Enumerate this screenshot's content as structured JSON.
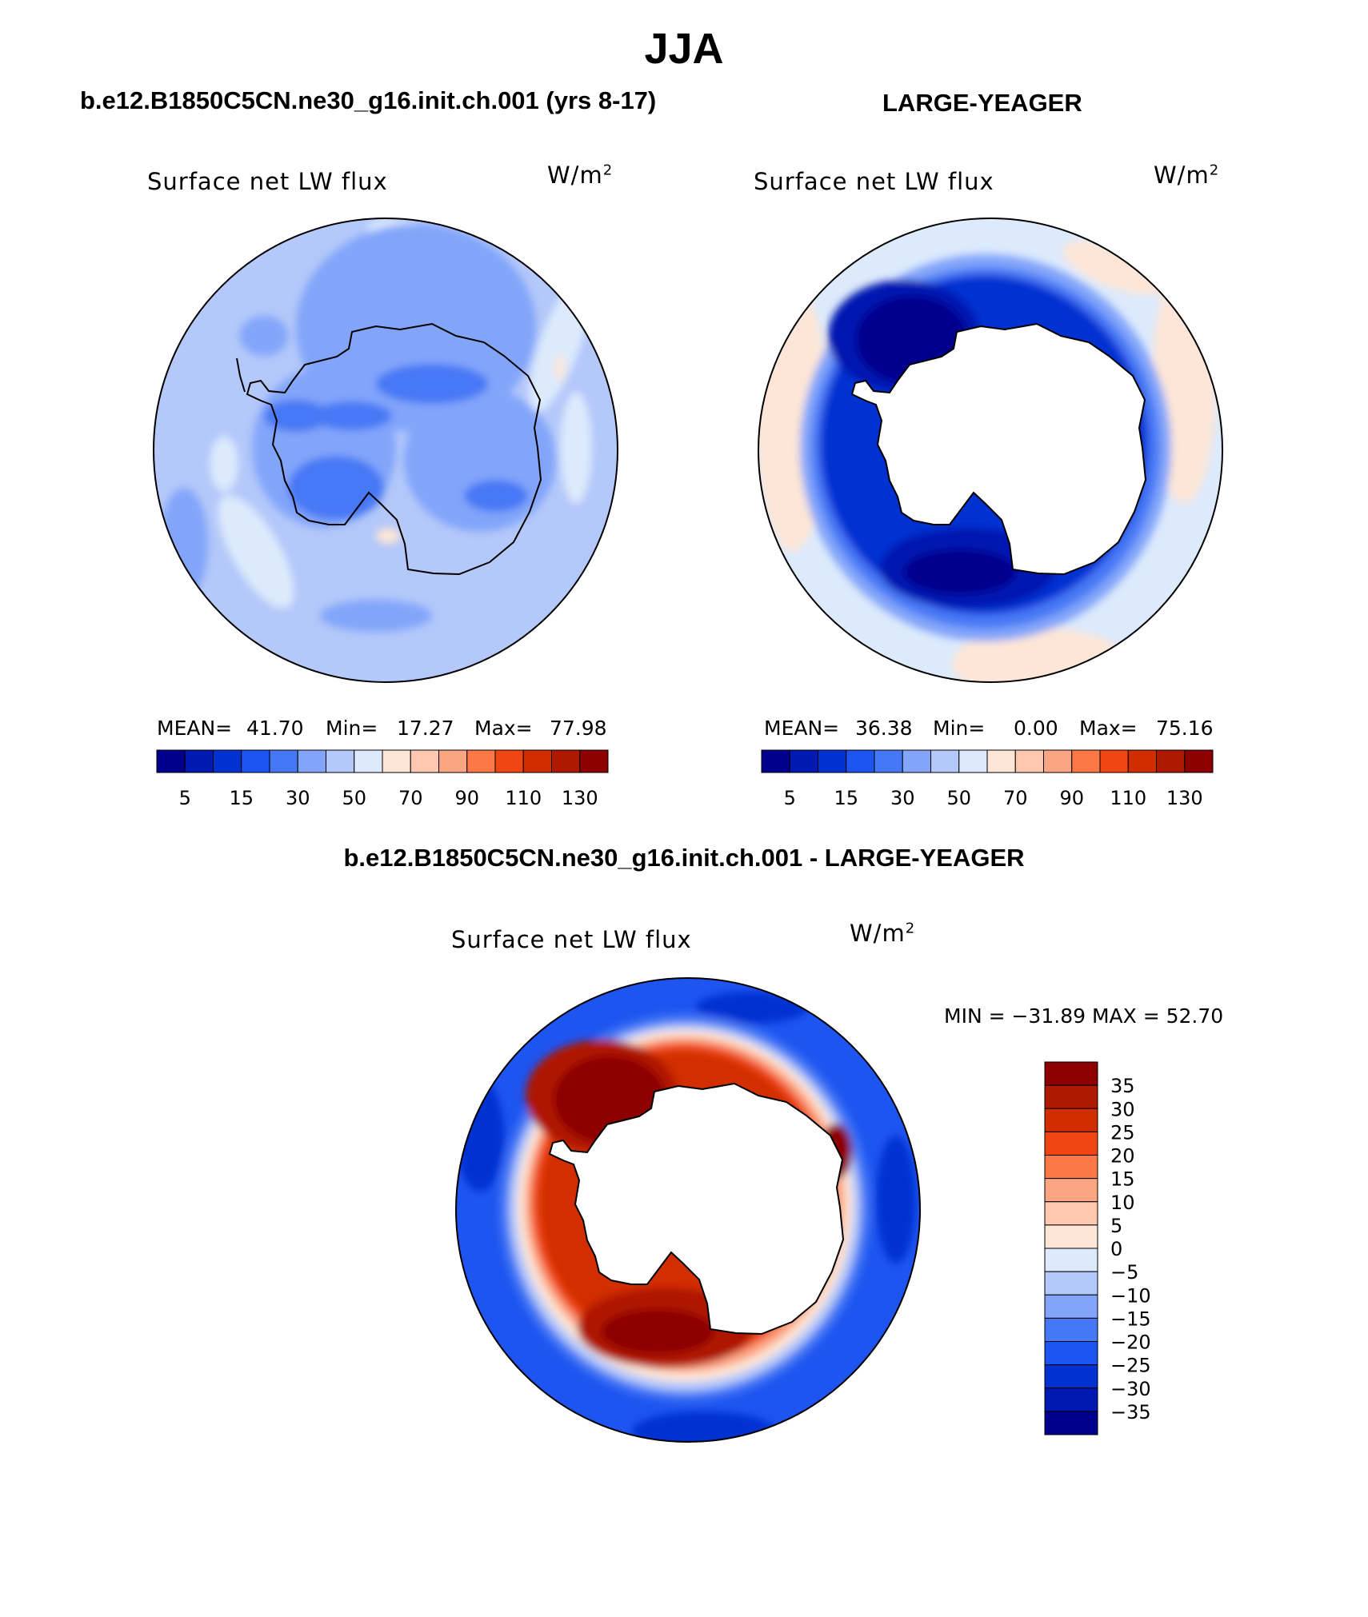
{
  "page": {
    "main_title": "JJA",
    "left_title": "b.e12.B1850C5CN.ne30_g16.init.ch.001 (yrs 8-17)",
    "right_title": "LARGE-YEAGER",
    "diff_title": "b.e12.B1850C5CN.ne30_g16.init.ch.001 - LARGE-YEAGER"
  },
  "panels": {
    "left": {
      "label": "Surface net LW flux",
      "units_base": "W/m",
      "units_exp": "2",
      "stats": {
        "mean_label": "MEAN=",
        "mean": "41.70",
        "min_label": "Min=",
        "min": "17.27",
        "max_label": "Max=",
        "max": "77.98"
      }
    },
    "right": {
      "label": "Surface net LW flux",
      "units_base": "W/m",
      "units_exp": "2",
      "stats": {
        "mean_label": "MEAN=",
        "mean": "36.38",
        "min_label": "Min=",
        "min": "0.00",
        "max_label": "Max=",
        "max": "75.16"
      }
    },
    "diff": {
      "label": "Surface net LW flux",
      "units_base": "W/m",
      "units_exp": "2",
      "minmax": "MIN = −31.89 MAX =   52.70"
    }
  },
  "colorbar_abs": {
    "colors": [
      "#00008c",
      "#0019b0",
      "#0032d2",
      "#1e55f0",
      "#4678f5",
      "#82a5fa",
      "#b4c8fa",
      "#dceafc",
      "#fde6d7",
      "#fdc8af",
      "#fca582",
      "#fc7846",
      "#f04614",
      "#d22d00",
      "#af1900",
      "#8c0000"
    ],
    "tick_labels": [
      "5",
      "15",
      "30",
      "50",
      "70",
      "90",
      "110",
      "130"
    ]
  },
  "colorbar_diff": {
    "colors": [
      "#8c0000",
      "#af1900",
      "#d22d00",
      "#f04614",
      "#fc7846",
      "#fca582",
      "#fdc8af",
      "#fde6d7",
      "#dceafc",
      "#b4c8fa",
      "#82a5fa",
      "#4678f5",
      "#1e55f0",
      "#0032d2",
      "#0019b0",
      "#00008c"
    ],
    "tick_labels": [
      "35",
      "30",
      "25",
      "20",
      "15",
      "10",
      "5",
      "0",
      "−5",
      "−10",
      "−15",
      "−20",
      "−25",
      "−30",
      "−35"
    ]
  }
}
